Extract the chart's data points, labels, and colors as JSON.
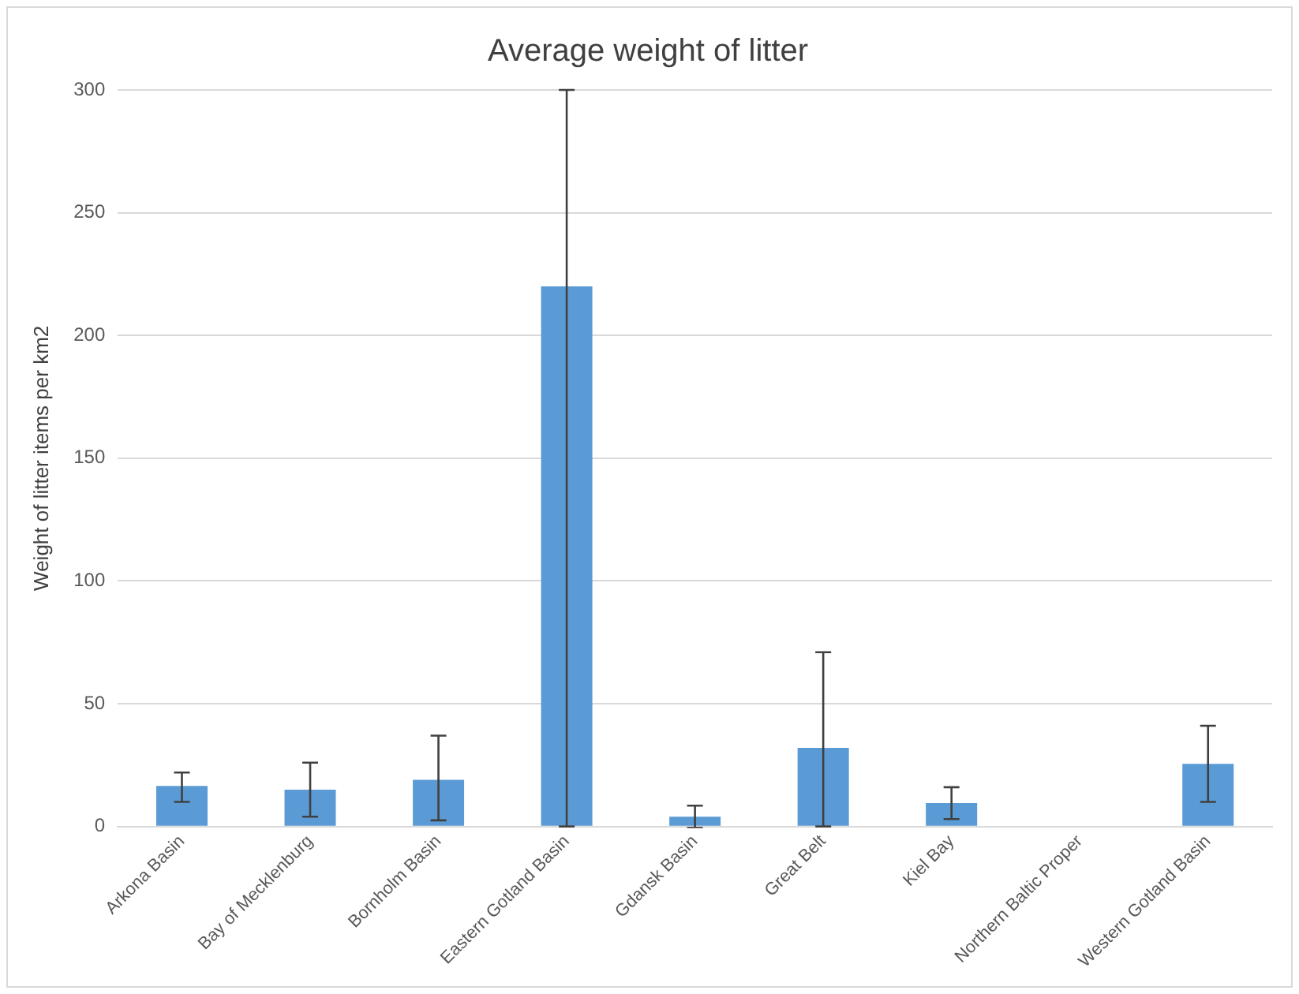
{
  "chart_data": {
    "type": "bar",
    "title": "Average weight of litter",
    "ylabel": "Weight of litter items per km2",
    "categories": [
      "Arkona Basin",
      "Bay of Mecklenburg",
      "Bornholm Basin",
      "Eastern Gotland Basin",
      "Gdansk Basin",
      "Great Belt",
      "Kiel Bay",
      "Northern Baltic Proper",
      "Western Gotland Basin"
    ],
    "values": [
      16.5,
      15,
      19,
      220,
      4,
      32,
      9.5,
      null,
      25.5
    ],
    "errors": [
      [
        10,
        22
      ],
      [
        4,
        26
      ],
      [
        2.5,
        37
      ],
      [
        0,
        300
      ],
      4.5,
      [
        0,
        71
      ],
      [
        3,
        16
      ],
      null,
      [
        10,
        41
      ]
    ],
    "color": "#5b9bd5",
    "ylim": [
      0,
      300
    ],
    "yticks": [
      0,
      50,
      100,
      150,
      200,
      250,
      300
    ],
    "grid": "y",
    "legend": false
  }
}
